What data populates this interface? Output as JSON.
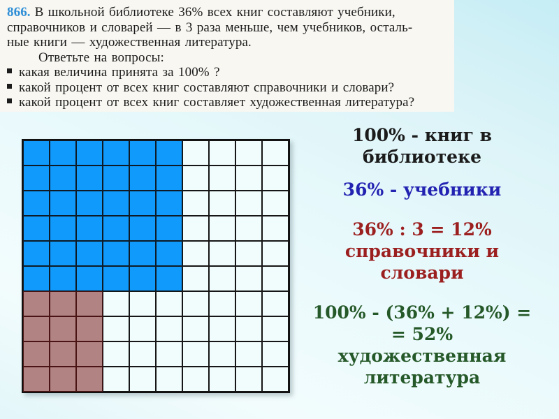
{
  "slide": {
    "background_top": "#c6edf5",
    "background_bottom": "#e3f6f9"
  },
  "textbook": {
    "number": "866.",
    "paragraph_lines": [
      "В школьной библиотеке 36% всех книг составляют учебники,",
      "справочников и словарей — в 3 раза меньше, чем учебников, осталь-",
      "ные книги — художественная литература."
    ],
    "intro": "Ответьте на вопросы:",
    "questions": [
      "какая величина принята за 100% ?",
      "какой процент от всех книг составляют справочники и словари?",
      "какой процент от всех книг составляет художественная литература?"
    ],
    "number_color": "#2f8fd6",
    "text_color": "#1c1c1c",
    "background": "#f8f7f2"
  },
  "grid": {
    "rows": 10,
    "cols": 10,
    "regions": [
      {
        "name": "textbooks",
        "percent": 36,
        "cells": 36,
        "row_start": 0,
        "row_end": 5,
        "col_start": 0,
        "col_end": 5,
        "fill": "#0f9afc",
        "line": "#0e1b26"
      },
      {
        "name": "reference-and-dictionaries",
        "percent": 12,
        "cells": 12,
        "row_start": 6,
        "row_end": 9,
        "col_start": 0,
        "col_end": 2,
        "fill": "#b28383",
        "line": "#4a1414"
      },
      {
        "name": "fiction",
        "percent": 52,
        "cells": 52,
        "fill": "#f1fcfd",
        "line": "#161616"
      }
    ]
  },
  "solution": {
    "blocks": [
      {
        "name": "total",
        "color": "#1b1b1b",
        "lines": [
          "100% - книг в",
          "библиотеке"
        ]
      },
      {
        "name": "textbooks",
        "color": "#2323b2",
        "lines": [
          "36% - учебники"
        ]
      },
      {
        "name": "reference",
        "color": "#9c1f1f",
        "lines": [
          "36% : 3 = 12%",
          "справочники и",
          "словари"
        ]
      },
      {
        "name": "fiction",
        "color": "#265929",
        "lines": [
          "100% - (36% + 12%) =",
          "= 52%",
          "художественная",
          "литература"
        ]
      }
    ]
  }
}
